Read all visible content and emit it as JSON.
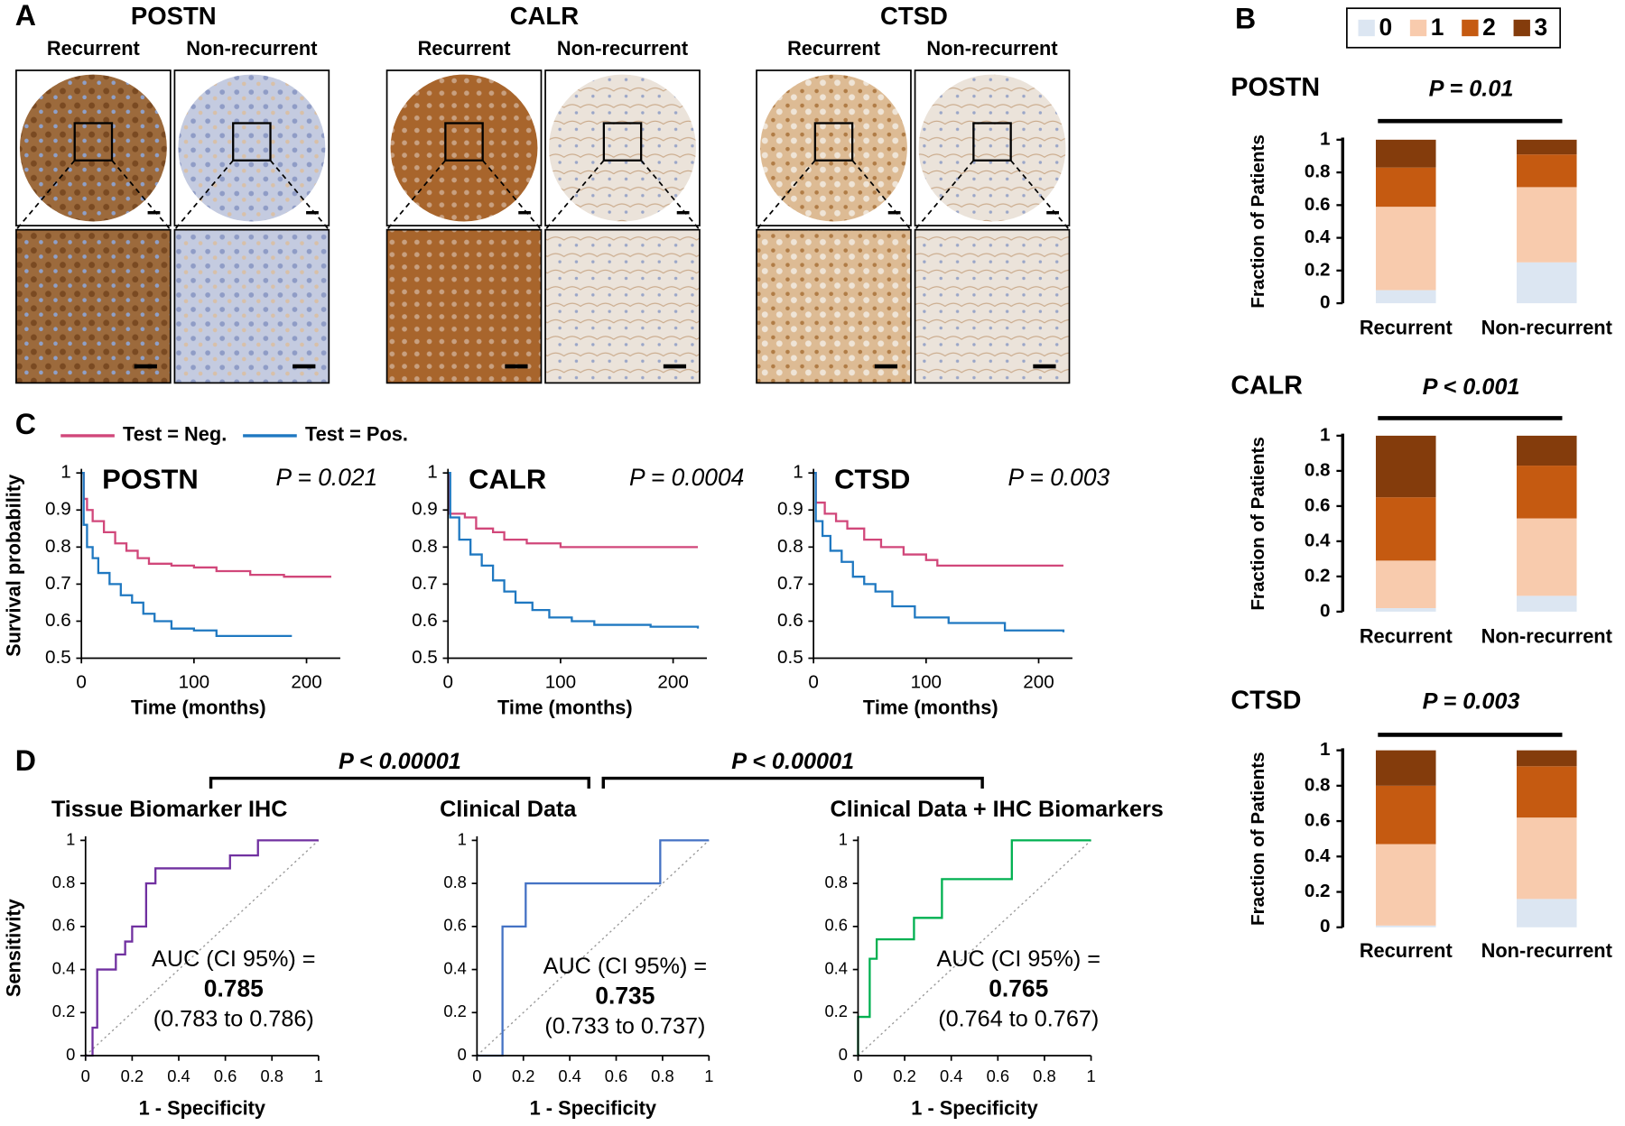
{
  "figure": {
    "panel_labels": [
      "A",
      "B",
      "C",
      "D"
    ],
    "ihc": [
      {
        "title": "POSTN",
        "labels": [
          "Recurrent",
          "Non-recurrent"
        ]
      },
      {
        "title": "CALR",
        "labels": [
          "Recurrent",
          "Non-recurrent"
        ]
      },
      {
        "title": "CTSD",
        "labels": [
          "Recurrent",
          "Non-recurrent"
        ]
      }
    ],
    "comparisons": [
      "P < 0.00001",
      "P < 0.00001"
    ]
  },
  "chart_data": [
    {
      "type": "bar",
      "stacked": true,
      "title": "POSTN",
      "annotation": "P = 0.01",
      "ylabel": "Fraction of Patients",
      "categories": [
        "Recurrent",
        "Non-recurrent"
      ],
      "ylim": [
        0,
        1
      ],
      "yticks": [
        0,
        0.2,
        0.4,
        0.6,
        0.8,
        1
      ],
      "series": [
        {
          "name": "0",
          "color": "#dce6f2",
          "values": [
            0.08,
            0.25
          ]
        },
        {
          "name": "1",
          "color": "#f8cbad",
          "values": [
            0.51,
            0.46
          ]
        },
        {
          "name": "2",
          "color": "#c55a11",
          "values": [
            0.24,
            0.2
          ]
        },
        {
          "name": "3",
          "color": "#843c0c",
          "values": [
            0.17,
            0.09
          ]
        }
      ]
    },
    {
      "type": "bar",
      "stacked": true,
      "title": "CALR",
      "annotation": "P < 0.001",
      "ylabel": "Fraction of Patients",
      "categories": [
        "Recurrent",
        "Non-recurrent"
      ],
      "ylim": [
        0,
        1
      ],
      "yticks": [
        0,
        0.2,
        0.4,
        0.6,
        0.8,
        1
      ],
      "series": [
        {
          "color": "#dce6f2",
          "values": [
            0.02,
            0.09
          ]
        },
        {
          "color": "#f8cbad",
          "values": [
            0.27,
            0.44
          ]
        },
        {
          "color": "#c55a11",
          "values": [
            0.36,
            0.3
          ]
        },
        {
          "color": "#843c0c",
          "values": [
            0.35,
            0.17
          ]
        }
      ]
    },
    {
      "type": "bar",
      "stacked": true,
      "title": "CTSD",
      "annotation": "P = 0.003",
      "ylabel": "Fraction of Patients",
      "categories": [
        "Recurrent",
        "Non-recurrent"
      ],
      "ylim": [
        0,
        1
      ],
      "yticks": [
        0,
        0.2,
        0.4,
        0.6,
        0.8,
        1
      ],
      "series": [
        {
          "color": "#dce6f2",
          "values": [
            0.01,
            0.16
          ]
        },
        {
          "color": "#f8cbad",
          "values": [
            0.46,
            0.46
          ]
        },
        {
          "color": "#c55a11",
          "values": [
            0.33,
            0.29
          ]
        },
        {
          "color": "#843c0c",
          "values": [
            0.2,
            0.09
          ]
        }
      ]
    },
    {
      "type": "line",
      "step": true,
      "title": "POSTN",
      "annotation": "P = 0.021",
      "ylabel": "Survival probability",
      "xlabel": "Time (months)",
      "xlim": [
        0,
        230
      ],
      "xticks": [
        0,
        100,
        200
      ],
      "ylim": [
        0.5,
        1
      ],
      "yticks": [
        0.5,
        0.6,
        0.7,
        0.8,
        0.9,
        1
      ],
      "series": [
        {
          "name": "Test = Neg.",
          "color": "#d1477a",
          "x": [
            0,
            2,
            5,
            10,
            20,
            30,
            40,
            50,
            60,
            80,
            100,
            120,
            150,
            180,
            222
          ],
          "values": [
            1,
            0.93,
            0.9,
            0.87,
            0.84,
            0.81,
            0.79,
            0.77,
            0.755,
            0.75,
            0.745,
            0.735,
            0.725,
            0.72,
            0.72
          ]
        },
        {
          "name": "Test = Pos.",
          "color": "#1f78c1",
          "x": [
            0,
            2,
            5,
            10,
            15,
            25,
            35,
            45,
            55,
            65,
            80,
            100,
            120,
            187
          ],
          "values": [
            1,
            0.86,
            0.8,
            0.77,
            0.73,
            0.7,
            0.67,
            0.65,
            0.62,
            0.6,
            0.58,
            0.575,
            0.56,
            0.56
          ]
        }
      ]
    },
    {
      "type": "line",
      "step": true,
      "title": "CALR",
      "annotation": "P = 0.0004",
      "xlabel": "Time (months)",
      "xlim": [
        0,
        230
      ],
      "xticks": [
        0,
        100,
        200
      ],
      "ylim": [
        0.5,
        1
      ],
      "yticks": [
        0.5,
        0.6,
        0.7,
        0.8,
        0.9,
        1
      ],
      "series": [
        {
          "color": "#d1477a",
          "x": [
            0,
            1,
            15,
            25,
            40,
            50,
            70,
            100,
            222
          ],
          "values": [
            1,
            0.89,
            0.88,
            0.85,
            0.84,
            0.82,
            0.81,
            0.8,
            0.8
          ]
        },
        {
          "color": "#1f78c1",
          "x": [
            0,
            2,
            10,
            20,
            30,
            40,
            50,
            60,
            75,
            90,
            110,
            130,
            180,
            222
          ],
          "values": [
            1,
            0.88,
            0.82,
            0.78,
            0.75,
            0.71,
            0.68,
            0.65,
            0.63,
            0.61,
            0.6,
            0.59,
            0.585,
            0.58
          ]
        }
      ]
    },
    {
      "type": "line",
      "step": true,
      "title": "CTSD",
      "annotation": "P = 0.003",
      "xlabel": "Time (months)",
      "xlim": [
        0,
        230
      ],
      "xticks": [
        0,
        100,
        200
      ],
      "ylim": [
        0.5,
        1
      ],
      "yticks": [
        0.5,
        0.6,
        0.7,
        0.8,
        0.9,
        1
      ],
      "series": [
        {
          "color": "#d1477a",
          "x": [
            0,
            2,
            10,
            20,
            30,
            45,
            60,
            80,
            100,
            110,
            222
          ],
          "values": [
            1,
            0.92,
            0.89,
            0.87,
            0.85,
            0.82,
            0.8,
            0.78,
            0.765,
            0.75,
            0.75
          ]
        },
        {
          "color": "#1f78c1",
          "x": [
            0,
            2,
            8,
            15,
            25,
            35,
            45,
            55,
            70,
            90,
            120,
            170,
            222
          ],
          "values": [
            1,
            0.87,
            0.83,
            0.79,
            0.76,
            0.72,
            0.7,
            0.68,
            0.64,
            0.61,
            0.595,
            0.575,
            0.57
          ]
        }
      ]
    },
    {
      "type": "line",
      "title": "Tissue Biomarker IHC",
      "annotations": [
        "AUC (CI 95%) =",
        "0.785",
        "(0.783 to 0.786)"
      ],
      "ylabel": "Sensitivity",
      "xlabel": "1 - Specificity",
      "xlim": [
        0,
        1
      ],
      "xticks": [
        0,
        0.2,
        0.4,
        0.6,
        0.8,
        1
      ],
      "ylim": [
        0,
        1
      ],
      "yticks": [
        0,
        0.2,
        0.4,
        0.6,
        0.8,
        1
      ],
      "series": [
        {
          "color": "#7030a0",
          "x": [
            0,
            0.03,
            0.03,
            0.05,
            0.05,
            0.13,
            0.13,
            0.17,
            0.17,
            0.2,
            0.2,
            0.26,
            0.26,
            0.3,
            0.3,
            0.62,
            0.62,
            0.74,
            0.74,
            1
          ],
          "values": [
            0,
            0,
            0.13,
            0.13,
            0.4,
            0.4,
            0.47,
            0.47,
            0.53,
            0.53,
            0.6,
            0.6,
            0.8,
            0.8,
            0.87,
            0.87,
            0.93,
            0.93,
            1,
            1
          ]
        }
      ]
    },
    {
      "type": "line",
      "title": "Clinical Data",
      "annotations": [
        "AUC (CI 95%) =",
        "0.735",
        "(0.733 to 0.737)"
      ],
      "xlabel": "1 - Specificity",
      "xlim": [
        0,
        1
      ],
      "xticks": [
        0,
        0.2,
        0.4,
        0.6,
        0.8,
        1
      ],
      "ylim": [
        0,
        1
      ],
      "yticks": [
        0,
        0.2,
        0.4,
        0.6,
        0.8,
        1
      ],
      "series": [
        {
          "color": "#4472c4",
          "x": [
            0,
            0.11,
            0.11,
            0.21,
            0.21,
            0.79,
            0.79,
            1
          ],
          "values": [
            0,
            0,
            0.6,
            0.6,
            0.8,
            0.8,
            1,
            1
          ]
        }
      ]
    },
    {
      "type": "line",
      "title": "Clinical Data + IHC Biomarkers",
      "annotations": [
        "AUC (CI 95%) =",
        "0.765",
        "(0.764 to 0.767)"
      ],
      "xlabel": "1 - Specificity",
      "xlim": [
        0,
        1
      ],
      "xticks": [
        0,
        0.2,
        0.4,
        0.6,
        0.8,
        1
      ],
      "ylim": [
        0,
        1
      ],
      "yticks": [
        0,
        0.2,
        0.4,
        0.6,
        0.8,
        1
      ],
      "series": [
        {
          "color": "#00b050",
          "x": [
            0,
            0,
            0.05,
            0.05,
            0.08,
            0.08,
            0.24,
            0.24,
            0.36,
            0.36,
            0.66,
            0.66,
            1
          ],
          "values": [
            0,
            0.18,
            0.18,
            0.45,
            0.45,
            0.54,
            0.54,
            0.64,
            0.64,
            0.82,
            0.82,
            1,
            1
          ]
        }
      ]
    }
  ]
}
